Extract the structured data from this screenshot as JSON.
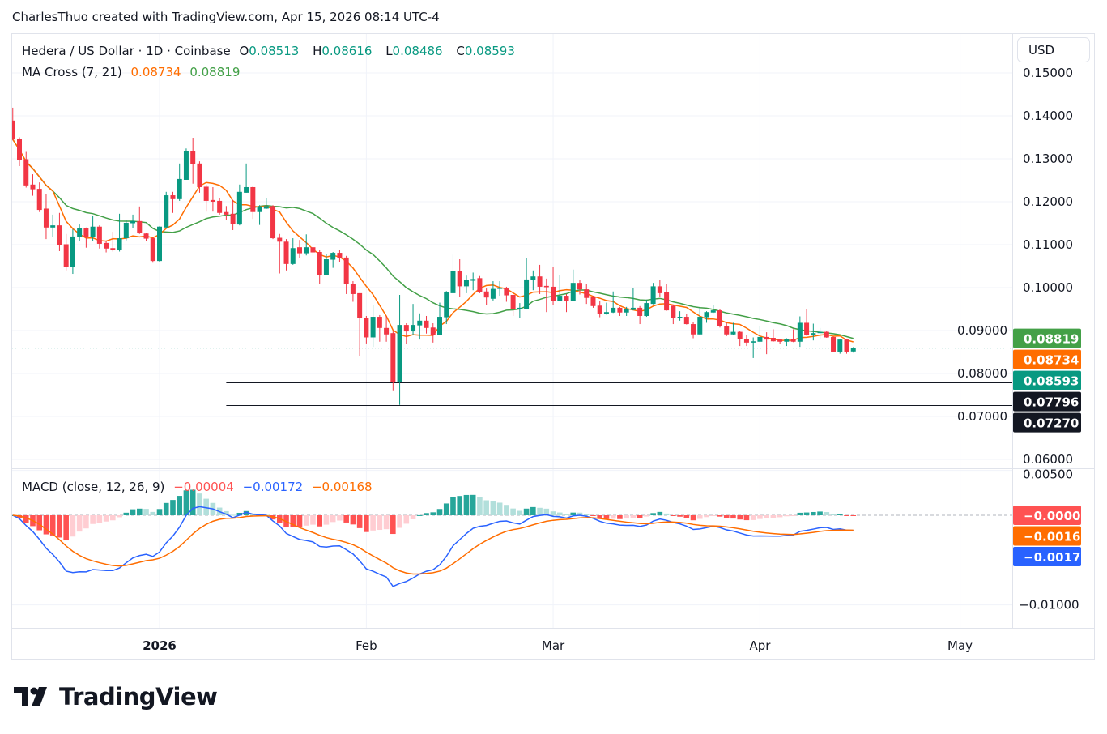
{
  "attribution": "CharlesThuo created with TradingView.com, Apr 15, 2026 08:14 UTC-4",
  "legend": {
    "symbol": "Hedera / US Dollar · 1D · Coinbase",
    "o_label": "O",
    "o": "0.08513",
    "h_label": "H",
    "h": "0.08616",
    "l_label": "L",
    "l": "0.08486",
    "c_label": "C",
    "c": "0.08593",
    "ma_title": "MA Cross (7, 21)",
    "ma_fast": "0.08734",
    "ma_slow": "0.08819",
    "macd_title": "MACD (close, 12, 26, 9)",
    "macd_hist": "−0.00004",
    "macd_line": "−0.00172",
    "macd_signal": "−0.00168"
  },
  "currency_button": "USD",
  "logo_text": "TradingView",
  "colors": {
    "up": "#089981",
    "down": "#f23645",
    "ma_fast": "#ff6d00",
    "ma_slow": "#43a047",
    "macd": "#2962ff",
    "signal": "#ff6d00",
    "hist_up": "#26a69a",
    "hist_up_light": "#b2dfdb",
    "hist_down": "#ff5252",
    "hist_down_light": "#ffcdd2"
  },
  "chart_data": {
    "type": "candlestick",
    "price_ticks": [
      "0.15000",
      "0.14000",
      "0.13000",
      "0.12000",
      "0.11000",
      "0.10000",
      "0.09000",
      "0.08000",
      "0.07000",
      "0.06000"
    ],
    "macd_ticks": [
      "0.00500",
      "-0.01000"
    ],
    "time_ticks": [
      {
        "label": "2026",
        "date": "2026-01-01"
      },
      {
        "label": "Feb",
        "date": "2026-02-01"
      },
      {
        "label": "Mar",
        "date": "2026-03-01"
      },
      {
        "label": "Apr",
        "date": "2026-04-01"
      },
      {
        "label": "May",
        "date": "2026-05-01"
      }
    ],
    "price_tags": [
      {
        "value": "0.08819",
        "color": "#43a047"
      },
      {
        "value": "0.08734",
        "color": "#ff6d00"
      },
      {
        "value": "0.08593",
        "color": "#089981"
      },
      {
        "value": "0.07796",
        "color": "#131722"
      },
      {
        "value": "0.07270",
        "color": "#131722"
      }
    ],
    "macd_tags": [
      {
        "value": "-0.00004",
        "color": "#ff5252"
      },
      {
        "value": "-0.00168",
        "color": "#ff6d00"
      },
      {
        "value": "-0.00172",
        "color": "#2962ff"
      }
    ],
    "horizontal_lines": [
      {
        "price": 0.07796,
        "from": "2026-01-11"
      },
      {
        "price": 0.0727,
        "from": "2026-01-11"
      }
    ],
    "ma_periods": [
      7,
      21
    ],
    "macd_params": [
      12,
      26,
      9
    ],
    "candles_columns": [
      "date",
      "open",
      "high",
      "low",
      "close"
    ],
    "candles": [
      [
        "2025-12-10",
        0.1389,
        0.1419,
        0.1343,
        0.1345
      ],
      [
        "2025-12-11",
        0.1347,
        0.135,
        0.1283,
        0.1297
      ],
      [
        "2025-12-12",
        0.1299,
        0.1316,
        0.1233,
        0.1238
      ],
      [
        "2025-12-13",
        0.124,
        0.1264,
        0.1214,
        0.1229
      ],
      [
        "2025-12-14",
        0.123,
        0.1245,
        0.1176,
        0.1181
      ],
      [
        "2025-12-15",
        0.1184,
        0.1217,
        0.1113,
        0.114
      ],
      [
        "2025-12-16",
        0.114,
        0.117,
        0.1117,
        0.1145
      ],
      [
        "2025-12-17",
        0.1145,
        0.1174,
        0.1085,
        0.11
      ],
      [
        "2025-12-18",
        0.1101,
        0.1125,
        0.104,
        0.1048
      ],
      [
        "2025-12-19",
        0.1048,
        0.1136,
        0.1032,
        0.1119
      ],
      [
        "2025-12-20",
        0.1118,
        0.1147,
        0.1108,
        0.1138
      ],
      [
        "2025-12-21",
        0.1138,
        0.114,
        0.1093,
        0.1118
      ],
      [
        "2025-12-22",
        0.1118,
        0.1168,
        0.1108,
        0.1142
      ],
      [
        "2025-12-23",
        0.1142,
        0.1145,
        0.1091,
        0.1102
      ],
      [
        "2025-12-24",
        0.1104,
        0.1108,
        0.1082,
        0.1091
      ],
      [
        "2025-12-25",
        0.1092,
        0.113,
        0.1084,
        0.1087
      ],
      [
        "2025-12-26",
        0.1087,
        0.1172,
        0.1084,
        0.1115
      ],
      [
        "2025-12-27",
        0.1115,
        0.1157,
        0.111,
        0.1151
      ],
      [
        "2025-12-28",
        0.115,
        0.117,
        0.1138,
        0.1155
      ],
      [
        "2025-12-29",
        0.1155,
        0.1189,
        0.1125,
        0.1127
      ],
      [
        "2025-12-30",
        0.1126,
        0.1128,
        0.1109,
        0.1114
      ],
      [
        "2025-12-31",
        0.1115,
        0.1117,
        0.1058,
        0.1062
      ],
      [
        "2026-01-01",
        0.1062,
        0.1143,
        0.106,
        0.1142
      ],
      [
        "2026-01-02",
        0.114,
        0.1223,
        0.1138,
        0.1215
      ],
      [
        "2026-01-03",
        0.1215,
        0.1223,
        0.1174,
        0.1206
      ],
      [
        "2026-01-04",
        0.1206,
        0.1289,
        0.1202,
        0.1253
      ],
      [
        "2026-01-05",
        0.1251,
        0.1324,
        0.1251,
        0.1317
      ],
      [
        "2026-01-06",
        0.1317,
        0.1349,
        0.1242,
        0.1287
      ],
      [
        "2026-01-07",
        0.1289,
        0.1294,
        0.1221,
        0.1234
      ],
      [
        "2026-01-08",
        0.1235,
        0.124,
        0.1177,
        0.1202
      ],
      [
        "2026-01-09",
        0.1204,
        0.1234,
        0.1177,
        0.12
      ],
      [
        "2026-01-10",
        0.1202,
        0.1209,
        0.117,
        0.1174
      ],
      [
        "2026-01-11",
        0.1176,
        0.119,
        0.1157,
        0.117
      ],
      [
        "2026-01-12",
        0.1172,
        0.1204,
        0.1134,
        0.1148
      ],
      [
        "2026-01-13",
        0.1147,
        0.124,
        0.1145,
        0.1223
      ],
      [
        "2026-01-14",
        0.1221,
        0.1289,
        0.1221,
        0.1234
      ],
      [
        "2026-01-15",
        0.1234,
        0.1236,
        0.116,
        0.1176
      ],
      [
        "2026-01-16",
        0.1176,
        0.1192,
        0.1146,
        0.1189
      ],
      [
        "2026-01-17",
        0.1184,
        0.1208,
        0.1183,
        0.119
      ],
      [
        "2026-01-18",
        0.119,
        0.1192,
        0.1113,
        0.1115
      ],
      [
        "2026-01-19",
        0.1116,
        0.1125,
        0.1033,
        0.1107
      ],
      [
        "2026-01-20",
        0.1107,
        0.1113,
        0.104,
        0.1055
      ],
      [
        "2026-01-21",
        0.1055,
        0.1115,
        0.1053,
        0.1092
      ],
      [
        "2026-01-22",
        0.1094,
        0.1111,
        0.1068,
        0.108
      ],
      [
        "2026-01-23",
        0.108,
        0.1124,
        0.1075,
        0.1094
      ],
      [
        "2026-01-24",
        0.1094,
        0.1099,
        0.1074,
        0.1082
      ],
      [
        "2026-01-25",
        0.1083,
        0.1087,
        0.1009,
        0.103
      ],
      [
        "2026-01-26",
        0.103,
        0.1079,
        0.103,
        0.1066
      ],
      [
        "2026-01-27",
        0.1065,
        0.1083,
        0.1046,
        0.1081
      ],
      [
        "2026-01-28",
        0.1081,
        0.1088,
        0.106,
        0.1068
      ],
      [
        "2026-01-29",
        0.107,
        0.1074,
        0.0985,
        0.1008
      ],
      [
        "2026-01-30",
        0.1009,
        0.1015,
        0.0967,
        0.0985
      ],
      [
        "2026-01-31",
        0.0987,
        0.0987,
        0.084,
        0.0929
      ],
      [
        "2026-02-01",
        0.093,
        0.0934,
        0.087,
        0.0884
      ],
      [
        "2026-02-02",
        0.0884,
        0.0959,
        0.0862,
        0.0932
      ],
      [
        "2026-02-03",
        0.0932,
        0.0936,
        0.0874,
        0.0906
      ],
      [
        "2026-02-04",
        0.0906,
        0.0934,
        0.0874,
        0.0891
      ],
      [
        "2026-02-05",
        0.0894,
        0.09,
        0.0759,
        0.07796
      ],
      [
        "2026-02-06",
        0.07796,
        0.0983,
        0.0727,
        0.0913
      ],
      [
        "2026-02-07",
        0.0913,
        0.0917,
        0.0868,
        0.0898
      ],
      [
        "2026-02-08",
        0.0898,
        0.0962,
        0.0889,
        0.0913
      ],
      [
        "2026-02-09",
        0.0912,
        0.094,
        0.0879,
        0.0923
      ],
      [
        "2026-02-10",
        0.0923,
        0.0934,
        0.0893,
        0.0906
      ],
      [
        "2026-02-11",
        0.0907,
        0.0917,
        0.0872,
        0.0889
      ],
      [
        "2026-02-12",
        0.0889,
        0.0965,
        0.0889,
        0.0932
      ],
      [
        "2026-02-13",
        0.0931,
        0.0992,
        0.0915,
        0.0989
      ],
      [
        "2026-02-14",
        0.0987,
        0.1077,
        0.0987,
        0.1039
      ],
      [
        "2026-02-15",
        0.1039,
        0.1066,
        0.0979,
        0.1003
      ],
      [
        "2026-02-16",
        0.1003,
        0.1028,
        0.0987,
        0.1017
      ],
      [
        "2026-02-17",
        0.1016,
        0.1035,
        0.0994,
        0.102
      ],
      [
        "2026-02-18",
        0.1022,
        0.1027,
        0.0987,
        0.0989
      ],
      [
        "2026-02-19",
        0.0991,
        0.0998,
        0.0959,
        0.0977
      ],
      [
        "2026-02-20",
        0.0974,
        0.1015,
        0.097,
        0.0997
      ],
      [
        "2026-02-21",
        0.0997,
        0.1015,
        0.0981,
        0.0999
      ],
      [
        "2026-02-22",
        0.0998,
        0.1002,
        0.0967,
        0.0982
      ],
      [
        "2026-02-23",
        0.0983,
        0.0987,
        0.0934,
        0.095
      ],
      [
        "2026-02-24",
        0.095,
        0.0964,
        0.0929,
        0.0953
      ],
      [
        "2026-02-25",
        0.095,
        0.1069,
        0.0949,
        0.1019
      ],
      [
        "2026-02-26",
        0.1018,
        0.104,
        0.0994,
        0.1026
      ],
      [
        "2026-02-27",
        0.1026,
        0.1053,
        0.0985,
        0.1002
      ],
      [
        "2026-02-28",
        0.1004,
        0.1021,
        0.0943,
        0.1001
      ],
      [
        "2026-03-01",
        0.1002,
        0.1049,
        0.0959,
        0.0968
      ],
      [
        "2026-03-02",
        0.0968,
        0.103,
        0.0968,
        0.0981
      ],
      [
        "2026-03-03",
        0.0981,
        0.0985,
        0.0943,
        0.0968
      ],
      [
        "2026-03-04",
        0.0968,
        0.1042,
        0.0968,
        0.1011
      ],
      [
        "2026-03-05",
        0.1011,
        0.1017,
        0.0984,
        0.0996
      ],
      [
        "2026-03-06",
        0.0996,
        0.1009,
        0.0962,
        0.0976
      ],
      [
        "2026-03-07",
        0.0978,
        0.0981,
        0.0953,
        0.0957
      ],
      [
        "2026-03-08",
        0.0958,
        0.0968,
        0.0931,
        0.0938
      ],
      [
        "2026-03-09",
        0.0938,
        0.0965,
        0.0937,
        0.0943
      ],
      [
        "2026-03-10",
        0.0942,
        0.0991,
        0.0941,
        0.0953
      ],
      [
        "2026-03-11",
        0.0953,
        0.0955,
        0.0934,
        0.0942
      ],
      [
        "2026-03-12",
        0.0942,
        0.0955,
        0.0934,
        0.095
      ],
      [
        "2026-03-13",
        0.0948,
        0.1,
        0.0947,
        0.0953
      ],
      [
        "2026-03-14",
        0.0953,
        0.0957,
        0.0915,
        0.0934
      ],
      [
        "2026-03-15",
        0.0934,
        0.0972,
        0.0932,
        0.0964
      ],
      [
        "2026-03-16",
        0.0962,
        0.1011,
        0.0961,
        0.1003
      ],
      [
        "2026-03-17",
        0.1003,
        0.1017,
        0.0979,
        0.0987
      ],
      [
        "2026-03-18",
        0.0989,
        0.1009,
        0.0946,
        0.0947
      ],
      [
        "2026-03-19",
        0.0958,
        0.096,
        0.0915,
        0.0929
      ],
      [
        "2026-03-20",
        0.0929,
        0.0945,
        0.0923,
        0.0932
      ],
      [
        "2026-03-21",
        0.0932,
        0.0938,
        0.0914,
        0.0915
      ],
      [
        "2026-03-22",
        0.0915,
        0.0919,
        0.0882,
        0.0891
      ],
      [
        "2026-03-23",
        0.0891,
        0.0954,
        0.0889,
        0.0932
      ],
      [
        "2026-03-24",
        0.0931,
        0.0945,
        0.0918,
        0.0943
      ],
      [
        "2026-03-25",
        0.0942,
        0.0959,
        0.0941,
        0.0947
      ],
      [
        "2026-03-26",
        0.0947,
        0.0949,
        0.0907,
        0.091
      ],
      [
        "2026-03-27",
        0.0911,
        0.0918,
        0.0887,
        0.0891
      ],
      [
        "2026-03-28",
        0.0891,
        0.0918,
        0.089,
        0.0897
      ],
      [
        "2026-03-29",
        0.0897,
        0.0899,
        0.0864,
        0.088
      ],
      [
        "2026-03-30",
        0.088,
        0.089,
        0.0864,
        0.0872
      ],
      [
        "2026-03-31",
        0.0872,
        0.0884,
        0.0836,
        0.0875
      ],
      [
        "2026-04-01",
        0.0874,
        0.0911,
        0.0873,
        0.0885
      ],
      [
        "2026-04-02",
        0.0885,
        0.0896,
        0.0845,
        0.0879
      ],
      [
        "2026-04-03",
        0.0883,
        0.0903,
        0.0874,
        0.0875
      ],
      [
        "2026-04-04",
        0.0879,
        0.0881,
        0.0868,
        0.0874
      ],
      [
        "2026-04-05",
        0.0874,
        0.0882,
        0.0864,
        0.088
      ],
      [
        "2026-04-06",
        0.0881,
        0.0903,
        0.0873,
        0.0874
      ],
      [
        "2026-04-07",
        0.0874,
        0.0933,
        0.0862,
        0.0918
      ],
      [
        "2026-04-08",
        0.0918,
        0.095,
        0.0888,
        0.0889
      ],
      [
        "2026-04-09",
        0.0889,
        0.0916,
        0.0877,
        0.0894
      ],
      [
        "2026-04-10",
        0.0894,
        0.0906,
        0.088,
        0.0897
      ],
      [
        "2026-04-11",
        0.0897,
        0.0899,
        0.0883,
        0.0884
      ],
      [
        "2026-04-12",
        0.0885,
        0.0886,
        0.0851,
        0.0851
      ],
      [
        "2026-04-13",
        0.0851,
        0.088,
        0.0846,
        0.0879
      ],
      [
        "2026-04-14",
        0.0879,
        0.0881,
        0.0846,
        0.0851
      ],
      [
        "2026-04-15",
        0.08513,
        0.08616,
        0.08486,
        0.08593
      ]
    ]
  }
}
